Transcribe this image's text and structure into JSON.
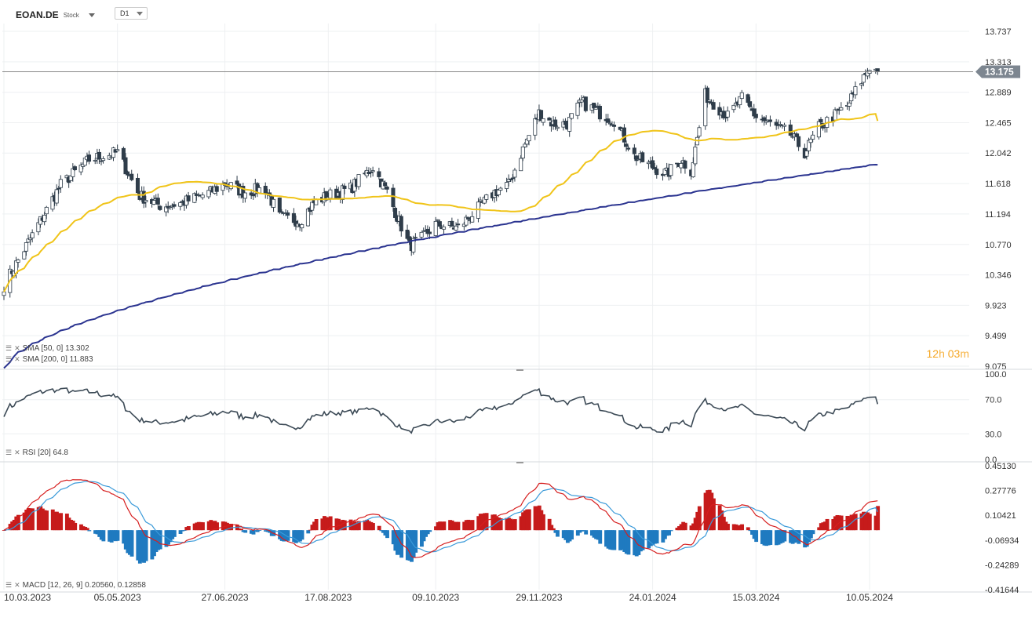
{
  "header": {
    "symbol": "EOAN.DE",
    "type": "Stock",
    "timeframe": "D1"
  },
  "price_axis": [
    "13.737",
    "13.313",
    "12.889",
    "12.465",
    "12.042",
    "11.618",
    "11.194",
    "10.770",
    "10.346",
    "9.923",
    "9.499",
    "9.075"
  ],
  "current_price": "13.175",
  "timer": {
    "hours": "12",
    "h": "h",
    "minutes": "03",
    "m": "m"
  },
  "dates": [
    "10.03.2023",
    "05.05.2023",
    "27.06.2023",
    "17.08.2023",
    "09.10.2023",
    "29.11.2023",
    "24.01.2024",
    "15.03.2024",
    "10.05.2024"
  ],
  "indicators": {
    "sma50": "SMA [50, 0] 13.302",
    "sma200": "SMA [200, 0] 11.883",
    "rsi": "RSI [20] 64.8",
    "macd": "MACD [12, 26, 9] 0.20560, 0.12858"
  },
  "rsi_axis": [
    "100.0",
    "70.0",
    "30.0",
    "0.0"
  ],
  "macd_axis": [
    "0.45130",
    "0.27776",
    "0.10421",
    "-0.06934",
    "-0.24289",
    "-0.41644"
  ],
  "colors": {
    "sma50": "#f0c419",
    "sma200": "#2b3490",
    "rsi": "#3c4a56",
    "macd": "#d61e1e",
    "signal": "#3a9ad9",
    "hist_pos": "#c61b1b",
    "hist_neg": "#1f7ac0",
    "candle": "#2f3d4a"
  },
  "chart_data": [
    {
      "type": "candlestick",
      "name": "EOAN.DE",
      "ylim": [
        9.075,
        13.737
      ],
      "date_ticks": [
        "10.03.2023",
        "05.05.2023",
        "27.06.2023",
        "17.08.2023",
        "09.10.2023",
        "29.11.2023",
        "24.01.2024",
        "15.03.2024",
        "10.05.2024"
      ],
      "close_anchors": [
        [
          "10.03.2023",
          10.2
        ],
        [
          "24.03.2023",
          10.9
        ],
        [
          "07.04.2023",
          11.6
        ],
        [
          "21.04.2023",
          11.95
        ],
        [
          "05.05.2023",
          12.05
        ],
        [
          "16.05.2023",
          11.45
        ],
        [
          "27.05.2023",
          11.3
        ],
        [
          "06.06.2023",
          11.35
        ],
        [
          "20.06.2023",
          11.5
        ],
        [
          "27.06.2023",
          11.62
        ],
        [
          "06.07.2023",
          11.5
        ],
        [
          "17.07.2023",
          11.55
        ],
        [
          "24.07.2023",
          11.15
        ],
        [
          "03.08.2023",
          11.1
        ],
        [
          "10.08.2023",
          11.35
        ],
        [
          "17.08.2023",
          11.45
        ],
        [
          "28.08.2023",
          11.55
        ],
        [
          "08.09.2023",
          11.85
        ],
        [
          "15.09.2023",
          11.5
        ],
        [
          "26.09.2023",
          10.75
        ],
        [
          "02.10.2023",
          10.85
        ],
        [
          "09.10.2023",
          11.05
        ],
        [
          "20.10.2023",
          11.0
        ],
        [
          "31.10.2023",
          11.3
        ],
        [
          "07.11.2023",
          11.5
        ],
        [
          "14.11.2023",
          11.6
        ],
        [
          "21.11.2023",
          12.1
        ],
        [
          "29.11.2023",
          12.6
        ],
        [
          "06.12.2023",
          12.45
        ],
        [
          "13.12.2023",
          12.45
        ],
        [
          "20.12.2023",
          12.75
        ],
        [
          "29.12.2023",
          12.6
        ],
        [
          "05.01.2024",
          12.5
        ],
        [
          "15.01.2024",
          12.0
        ],
        [
          "24.01.2024",
          11.85
        ],
        [
          "31.01.2024",
          11.75
        ],
        [
          "07.02.2024",
          11.95
        ],
        [
          "12.02.2024",
          11.8
        ],
        [
          "19.02.2024",
          12.85
        ],
        [
          "01.03.2024",
          12.55
        ],
        [
          "08.03.2024",
          12.8
        ],
        [
          "15.03.2024",
          12.55
        ],
        [
          "22.03.2024",
          12.45
        ],
        [
          "01.04.2024",
          12.3
        ],
        [
          "08.04.2024",
          12.05
        ],
        [
          "15.04.2024",
          12.4
        ],
        [
          "22.04.2024",
          12.55
        ],
        [
          "29.04.2024",
          12.7
        ],
        [
          "06.05.2024",
          13.05
        ],
        [
          "10.05.2024",
          13.25
        ],
        [
          "14.05.2024",
          13.175
        ]
      ],
      "sma50": {
        "label": "SMA [50, 0]",
        "last": 13.302
      },
      "sma200": {
        "label": "SMA [200, 0]",
        "last": 11.883
      },
      "current_price": 13.175
    },
    {
      "type": "line",
      "name": "RSI [20]",
      "ylim": [
        0,
        100
      ],
      "levels": [
        70,
        30
      ],
      "last": 64.8
    },
    {
      "type": "bar+line",
      "name": "MACD [12, 26, 9]",
      "params": [
        12,
        26,
        9
      ],
      "ylim": [
        -0.41644,
        0.4513
      ],
      "last_macd": 0.2056,
      "last_signal": 0.12858
    }
  ]
}
